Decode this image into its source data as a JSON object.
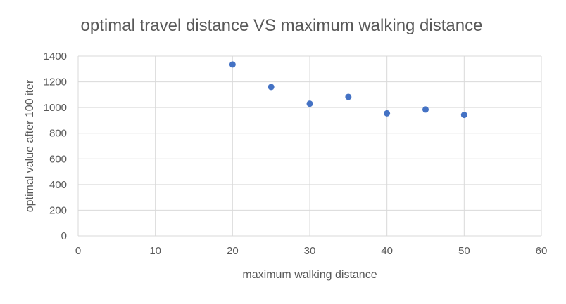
{
  "chart_data": {
    "type": "scatter",
    "title": "optimal travel distance VS maximum walking distance",
    "xlabel": "maximum walking distance",
    "ylabel": "optimal value after 100 iter",
    "xlim": [
      0,
      60
    ],
    "ylim": [
      0,
      1400
    ],
    "xticks": [
      0,
      10,
      20,
      30,
      40,
      50,
      60
    ],
    "yticks": [
      0,
      200,
      400,
      600,
      800,
      1000,
      1200,
      1400
    ],
    "grid": true,
    "legend": "none",
    "series": [
      {
        "color": "#4472C4",
        "points": [
          {
            "x": 20,
            "y": 1335
          },
          {
            "x": 25,
            "y": 1160
          },
          {
            "x": 30,
            "y": 1030
          },
          {
            "x": 35,
            "y": 1083
          },
          {
            "x": 40,
            "y": 955
          },
          {
            "x": 45,
            "y": 985
          },
          {
            "x": 50,
            "y": 943
          }
        ]
      }
    ]
  }
}
